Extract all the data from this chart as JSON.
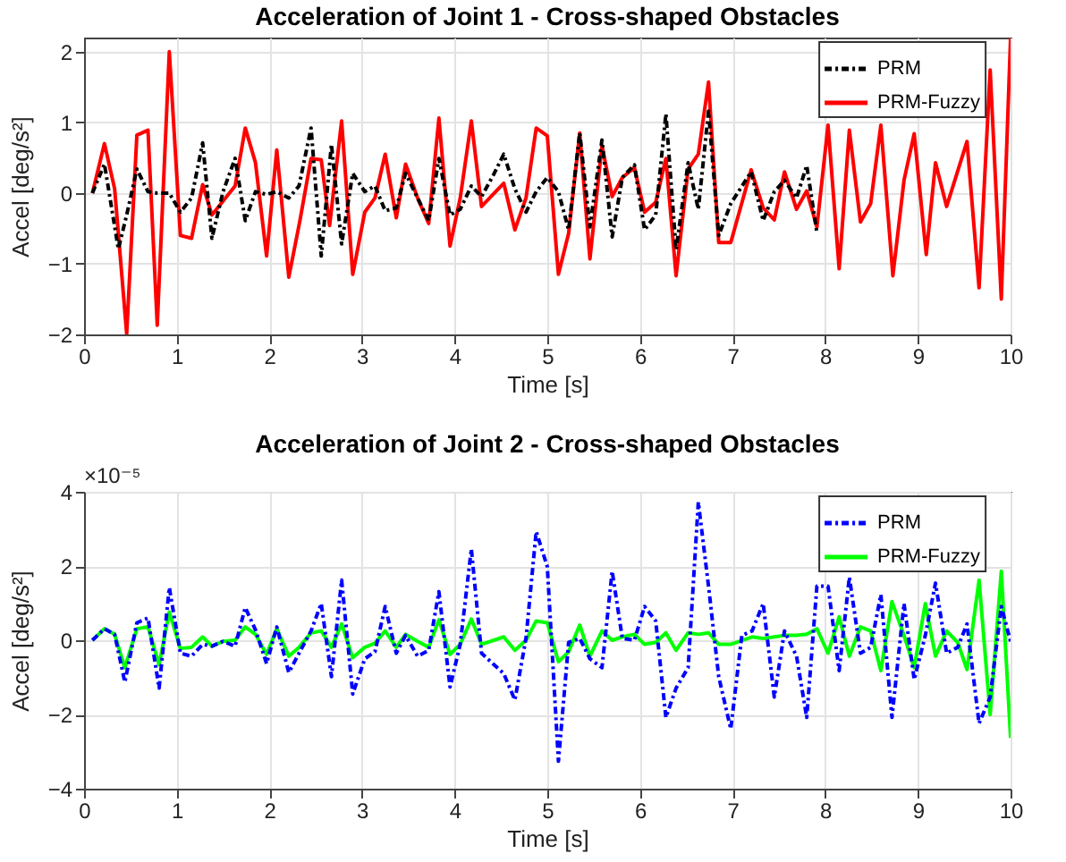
{
  "chart_data": [
    {
      "type": "line",
      "title": "Acceleration of Joint 1 - Cross-shaped Obstacles",
      "xlabel": "Time [s]",
      "ylabel": "Accel [deg/s²]",
      "xlim": [
        0,
        10
      ],
      "xticks": [
        0,
        1,
        2,
        3,
        4,
        5,
        6,
        7,
        8,
        9,
        10
      ],
      "ylim": [
        -2,
        2.2
      ],
      "yticks": [
        -2,
        -1,
        0,
        1,
        2
      ],
      "grid": true,
      "legend": "top right",
      "series": [
        {
          "name": "PRM",
          "color": "#000000",
          "line_style": "dashed",
          "x": [
            0.09,
            0.22,
            0.37,
            0.46,
            0.57,
            0.69,
            0.79,
            0.92,
            1.04,
            1.16,
            1.28,
            1.38,
            1.5,
            1.63,
            1.74,
            1.85,
            1.97,
            2.08,
            2.21,
            2.32,
            2.45,
            2.56,
            2.67,
            2.78,
            2.9,
            3.03,
            3.14,
            3.25,
            3.37,
            3.47,
            3.6,
            3.72,
            3.83,
            3.95,
            4.06,
            4.18,
            4.29,
            4.42,
            4.53,
            4.65,
            4.77,
            4.88,
            5.0,
            5.12,
            5.23,
            5.35,
            5.46,
            5.59,
            5.7,
            5.81,
            5.94,
            6.05,
            6.17,
            6.28,
            6.39,
            6.52,
            6.63,
            6.74,
            6.85,
            6.98,
            7.2,
            7.33,
            7.45,
            7.56,
            7.69,
            7.8,
            7.91
          ],
          "values": [
            0,
            0.41,
            -0.79,
            -0.31,
            0.34,
            0.02,
            0,
            0,
            -0.27,
            -0.07,
            0.71,
            -0.64,
            0.02,
            0.49,
            -0.39,
            0.02,
            -0.02,
            0.02,
            -0.07,
            0.1,
            0.92,
            -0.89,
            0.69,
            -0.72,
            0.28,
            0.02,
            0.1,
            -0.25,
            -0.21,
            0.28,
            -0.07,
            -0.39,
            0.49,
            -0.31,
            -0.23,
            0.1,
            -0.05,
            0.26,
            0.55,
            0.06,
            -0.27,
            0.02,
            0.22,
            0.02,
            -0.52,
            0.85,
            -0.48,
            0.75,
            -0.62,
            0.22,
            0.4,
            -0.52,
            -0.31,
            1.12,
            -0.8,
            0.43,
            -0.23,
            1.16,
            -0.6,
            -0.15,
            0.3,
            -0.39,
            0.02,
            0.18,
            -0.07,
            0.39,
            -0.56
          ]
        },
        {
          "name": "PRM-Fuzzy",
          "color": "#ff0000",
          "line_style": "solid",
          "x": [
            0.09,
            0.22,
            0.33,
            0.46,
            0.57,
            0.69,
            0.79,
            0.92,
            1.04,
            1.16,
            1.28,
            1.38,
            1.63,
            1.74,
            1.85,
            1.97,
            2.08,
            2.21,
            2.33,
            2.45,
            2.56,
            2.65,
            2.78,
            2.9,
            3.03,
            3.14,
            3.25,
            3.37,
            3.47,
            3.6,
            3.72,
            3.83,
            3.95,
            4.06,
            4.18,
            4.29,
            4.53,
            4.65,
            4.77,
            4.88,
            5.0,
            5.12,
            5.23,
            5.35,
            5.46,
            5.59,
            5.7,
            5.81,
            5.94,
            6.05,
            6.17,
            6.28,
            6.39,
            6.52,
            6.63,
            6.74,
            6.85,
            6.98,
            7.2,
            7.33,
            7.45,
            7.56,
            7.69,
            7.8,
            7.91,
            8.03,
            8.15,
            8.26,
            8.38,
            8.49,
            8.6,
            8.73,
            8.85,
            8.96,
            9.09,
            9.19,
            9.31,
            9.53,
            9.66,
            9.78,
            9.9,
            10
          ],
          "values": [
            0,
            0.7,
            0.06,
            -1.99,
            0.82,
            0.89,
            -1.87,
            2.0,
            -0.6,
            -0.64,
            0.12,
            -0.31,
            0.1,
            0.92,
            0.43,
            -0.89,
            0.61,
            -1.19,
            -0.39,
            0.49,
            0.47,
            -0.46,
            1.02,
            -1.15,
            -0.27,
            -0.07,
            0.55,
            -0.35,
            0.41,
            -0.07,
            -0.43,
            1.06,
            -0.75,
            -0.07,
            1.02,
            -0.19,
            0.14,
            -0.52,
            -0.07,
            0.92,
            0.81,
            -1.15,
            -0.57,
            0.85,
            -0.93,
            0.67,
            -0.05,
            0.22,
            0.36,
            -0.27,
            -0.13,
            0.49,
            -1.17,
            0.34,
            0.55,
            1.57,
            -0.7,
            -0.7,
            0.33,
            -0.21,
            -0.38,
            0.3,
            -0.23,
            0.03,
            -0.48,
            0.96,
            -1.07,
            0.89,
            -0.41,
            -0.15,
            0.96,
            -1.17,
            0.18,
            0.84,
            -0.87,
            0.43,
            -0.19,
            0.73,
            -1.34,
            1.74,
            -1.5,
            2.19
          ]
        }
      ]
    },
    {
      "type": "line",
      "title": "Acceleration of Joint 2 - Cross-shaped Obstacles",
      "xlabel": "Time [s]",
      "ylabel": "Accel [deg/s²]",
      "annotations": [
        "×10⁻⁵"
      ],
      "xlim": [
        0,
        10
      ],
      "xticks": [
        0,
        1,
        2,
        3,
        4,
        5,
        6,
        7,
        8,
        9,
        10
      ],
      "ylim": [
        -4,
        4
      ],
      "yticks": [
        -4,
        -2,
        0,
        2,
        4
      ],
      "grid": true,
      "legend": "top right",
      "series": [
        {
          "name": "PRM",
          "color": "#0000ff",
          "line_style": "dashed",
          "x": [
            0.09,
            0.22,
            0.33,
            0.44,
            0.57,
            0.69,
            0.81,
            0.92,
            1.04,
            1.16,
            1.28,
            1.38,
            1.5,
            1.63,
            1.74,
            1.85,
            1.97,
            2.08,
            2.21,
            2.32,
            2.45,
            2.56,
            2.67,
            2.78,
            2.9,
            3.03,
            3.14,
            3.25,
            3.37,
            3.47,
            3.6,
            3.72,
            3.83,
            3.95,
            4.06,
            4.18,
            4.29,
            4.53,
            4.65,
            4.77,
            4.88,
            5.0,
            5.12,
            5.23,
            5.35,
            5.46,
            5.59,
            5.7,
            5.81,
            5.94,
            6.05,
            6.17,
            6.28,
            6.39,
            6.52,
            6.63,
            6.74,
            6.85,
            6.98,
            7.1,
            7.21,
            7.33,
            7.45,
            7.56,
            7.69,
            7.8,
            7.91,
            8.03,
            8.15,
            8.26,
            8.38,
            8.49,
            8.6,
            8.72,
            8.85,
            8.96,
            9.08,
            9.19,
            9.31,
            9.43,
            9.53,
            9.66,
            9.78,
            9.9,
            10
          ],
          "values": [
            0,
            0.31,
            0.16,
            -1.13,
            0.47,
            0.6,
            -1.29,
            1.42,
            -0.35,
            -0.43,
            -0.11,
            -0.16,
            -0.03,
            -0.16,
            0.88,
            0.28,
            -0.63,
            0.36,
            -0.87,
            -0.35,
            0.25,
            0.99,
            -0.98,
            1.62,
            -1.45,
            -0.5,
            -0.31,
            0.91,
            -0.35,
            0.13,
            -0.43,
            -0.27,
            1.31,
            -1.26,
            -0.11,
            2.46,
            -0.35,
            -0.9,
            -1.61,
            0.05,
            2.93,
            1.98,
            -3.26,
            -0.06,
            0.05,
            -0.5,
            -0.74,
            1.86,
            0.05,
            0,
            0.91,
            0.52,
            -2.08,
            -1.29,
            -0.74,
            3.72,
            1.46,
            -0.98,
            -2.39,
            0.13,
            0.25,
            0.99,
            -1.53,
            0.25,
            -0.43,
            -2.08,
            1.46,
            1.46,
            -0.82,
            1.7,
            -0.35,
            -0.19,
            1.23,
            -2.08,
            0.99,
            -1.06,
            0.13,
            1.54,
            -0.35,
            -0.19,
            0.44,
            -2.24,
            -1.53,
            0.91,
            -0.03
          ]
        },
        {
          "name": "PRM-Fuzzy",
          "color": "#00ff00",
          "line_style": "solid",
          "x": [
            0.09,
            0.22,
            0.33,
            0.44,
            0.57,
            0.69,
            0.81,
            0.92,
            1.04,
            1.16,
            1.28,
            1.38,
            1.5,
            1.63,
            1.74,
            1.85,
            1.97,
            2.08,
            2.21,
            2.32,
            2.45,
            2.56,
            2.67,
            2.78,
            2.9,
            3.03,
            3.14,
            3.25,
            3.37,
            3.47,
            3.6,
            3.72,
            3.83,
            3.95,
            4.06,
            4.18,
            4.29,
            4.53,
            4.65,
            4.77,
            4.88,
            5.0,
            5.12,
            5.23,
            5.35,
            5.46,
            5.59,
            5.7,
            5.81,
            5.94,
            6.05,
            6.17,
            6.28,
            6.39,
            6.52,
            6.63,
            6.74,
            6.85,
            6.98,
            7.21,
            7.33,
            7.45,
            7.56,
            7.69,
            7.8,
            7.91,
            8.03,
            8.15,
            8.26,
            8.38,
            8.49,
            8.6,
            8.72,
            8.85,
            8.96,
            9.08,
            9.19,
            9.31,
            9.43,
            9.53,
            9.66,
            9.78,
            9.9,
            10
          ],
          "values": [
            0,
            0.31,
            0.16,
            -0.74,
            0.31,
            0.36,
            -0.66,
            0.76,
            -0.22,
            -0.19,
            0.09,
            -0.16,
            -0.03,
            0,
            0.36,
            0.16,
            -0.38,
            0.31,
            -0.43,
            -0.19,
            0.2,
            0.25,
            -0.19,
            0.44,
            -0.47,
            -0.19,
            -0.08,
            0.25,
            -0.19,
            0.16,
            -0.03,
            -0.19,
            0.55,
            -0.38,
            -0.11,
            0.57,
            -0.11,
            0.09,
            -0.27,
            0,
            0.52,
            0.47,
            -0.58,
            -0.31,
            0.41,
            -0.43,
            0.25,
            0,
            0.09,
            0.16,
            -0.11,
            -0.06,
            0.2,
            -0.27,
            0.2,
            0.16,
            0.2,
            -0.11,
            -0.11,
            0.09,
            0.05,
            0.09,
            0.13,
            0.13,
            0.16,
            0.31,
            -0.35,
            0.63,
            -0.43,
            0.36,
            0.25,
            -0.82,
            1.04,
            0.13,
            -0.74,
            0.99,
            -0.43,
            0.25,
            -0.06,
            -0.79,
            1.62,
            -2.0,
            1.86,
            -2.63
          ]
        }
      ]
    }
  ]
}
